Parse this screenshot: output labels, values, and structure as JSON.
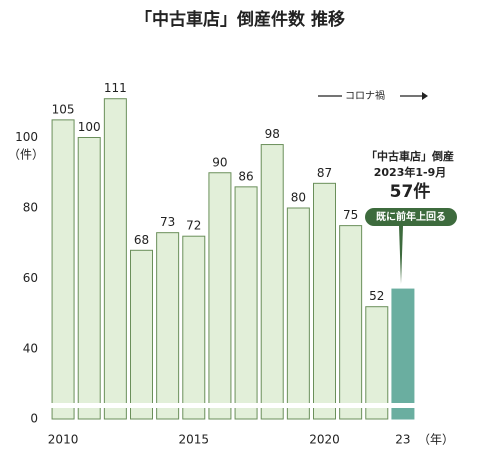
{
  "chart_data": {
    "type": "bar",
    "title": "「中古車店」倒産件数 推移",
    "categories": [
      "2010",
      null,
      null,
      null,
      null,
      "2015",
      null,
      null,
      null,
      null,
      "2020",
      null,
      null,
      "23"
    ],
    "values": [
      105,
      100,
      111,
      68,
      73,
      72,
      90,
      86,
      98,
      80,
      87,
      75,
      52,
      57
    ],
    "value_labels": [
      "105",
      "100",
      "111",
      "68",
      "73",
      "72",
      "90",
      "86",
      "98",
      "80",
      "87",
      "75",
      "52",
      "57件"
    ],
    "color": "#e2efd9",
    "border_color": "#6a8f5a",
    "highlight_color": "#6aaea0",
    "ylim": [
      0,
      120
    ],
    "yticks": [
      0,
      40,
      60,
      80,
      100
    ],
    "axis_break": [
      0,
      40
    ],
    "y_unit": "（件）",
    "x_unit": "（年）",
    "annotation": "コロナ禍",
    "callout": [
      "「中古車店」倒産",
      "2023年1-9月"
    ],
    "callout_badge": "既に前年上回る"
  }
}
